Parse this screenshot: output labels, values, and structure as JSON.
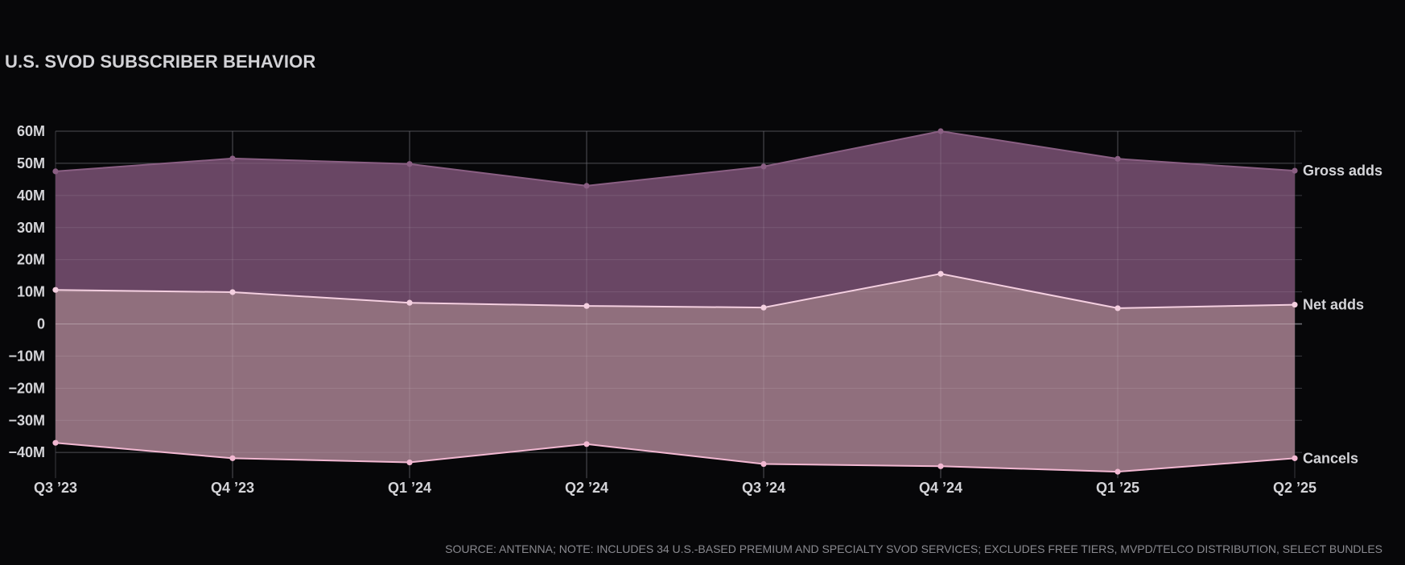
{
  "chart_data": {
    "type": "area",
    "title": "U.S. SVOD SUBSCRIBER BEHAVIOR",
    "source": "SOURCE: ANTENNA; NOTE: INCLUDES 34 U.S.-BASED PREMIUM AND SPECIALTY SVOD SERVICES; EXCLUDES FREE TIERS, MVPD/TELCO DISTRIBUTION, SELECT BUNDLES",
    "categories": [
      "Q3 ’23",
      "Q4 ’23",
      "Q1 ’24",
      "Q2 ’24",
      "Q3 ’24",
      "Q4 ’24",
      "Q1 ’25",
      "Q2 ’25"
    ],
    "yticks": [
      60,
      50,
      40,
      30,
      20,
      10,
      0,
      -10,
      -20,
      -30,
      -40
    ],
    "ytick_labels": [
      "60M",
      "50M",
      "40M",
      "30M",
      "20M",
      "10M",
      "0",
      "−10M",
      "−20M",
      "−30M",
      "−40M"
    ],
    "ylim": [
      -46,
      60
    ],
    "grid": true,
    "series": [
      {
        "name": "Gross adds",
        "values": [
          47.5,
          51.5,
          49.8,
          43.0,
          49.0,
          60.0,
          51.4,
          47.7
        ],
        "color": "#6b4766",
        "line": "#8a5f83"
      },
      {
        "name": "Net adds",
        "values": [
          10.6,
          9.9,
          6.6,
          5.6,
          5.1,
          15.6,
          4.9,
          6.0
        ],
        "color": "#93717f",
        "line": "#f4cfe0"
      },
      {
        "name": "Cancels",
        "values": [
          -37.0,
          -41.8,
          -43.1,
          -37.4,
          -43.6,
          -44.3,
          -46.0,
          -41.8
        ],
        "color": "#93717f",
        "line": "#f2b8d2"
      }
    ]
  }
}
